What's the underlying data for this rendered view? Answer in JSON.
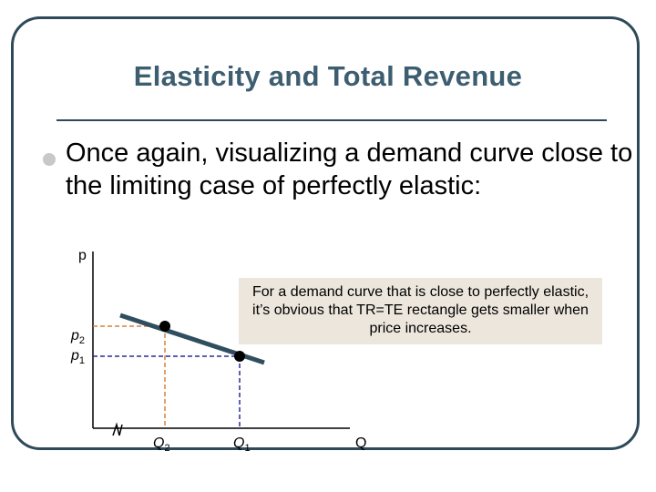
{
  "slide": {
    "title": "Elasticity and Total Revenue",
    "bullet": "Once again, visualizing a demand curve close to the limiting case of perfectly elastic:"
  },
  "graph": {
    "y_axis_label": "p",
    "x_axis_label": "Q",
    "price_labels": [
      {
        "base": "p",
        "sub": "2"
      },
      {
        "base": "p",
        "sub": "1"
      }
    ],
    "quantity_labels": [
      {
        "base": "Q",
        "sub": "2"
      },
      {
        "base": "Q",
        "sub": "1"
      }
    ],
    "note": "For a demand curve that is close to perfectly elastic, it’s obvious that TR=TE rectangle gets smaller when price increases.",
    "colors": {
      "demand_line": "#2f4f5f",
      "p2_guide": "#d9823a",
      "p1_guide": "#2a2a9a",
      "axis": "#000000",
      "note_bg": "#ece6dc"
    }
  }
}
